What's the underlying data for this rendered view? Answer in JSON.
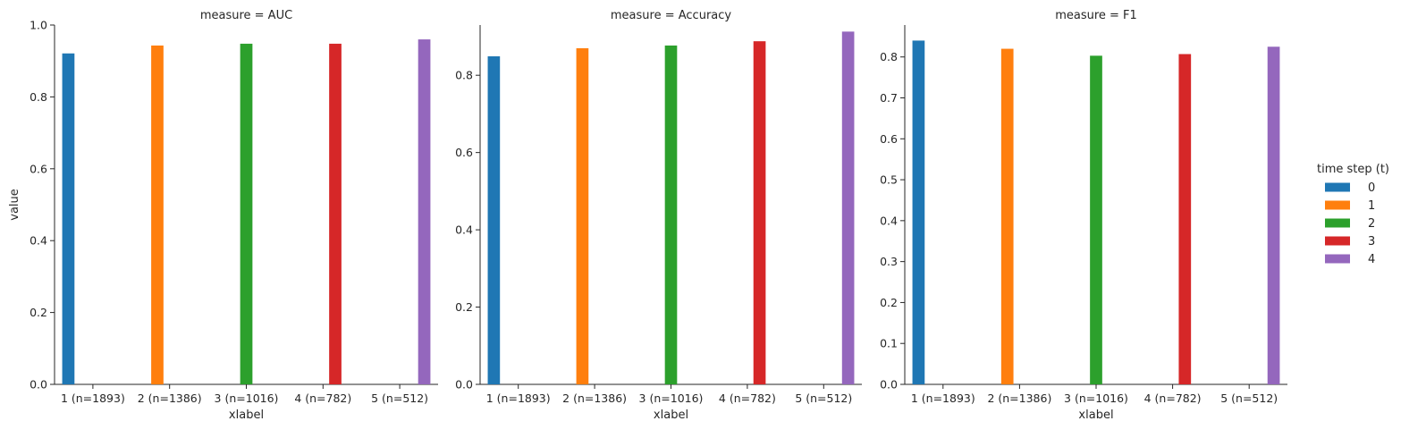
{
  "chart_data": {
    "type": "bar",
    "categories": [
      "1 (n=1893)",
      "2 (n=1386)",
      "3 (n=1016)",
      "4 (n=782)",
      "5 (n=512)"
    ],
    "xlabel": "xlabel",
    "ylabel": "value",
    "legend": {
      "title": "time step (t)",
      "placement": "right",
      "entries": [
        "0",
        "1",
        "2",
        "3",
        "4"
      ]
    },
    "colors": [
      "#1f77b4",
      "#ff7f0e",
      "#2ca02c",
      "#d62728",
      "#9467bd"
    ],
    "grid": false,
    "panels": [
      {
        "title": "measure = AUC",
        "ylim": [
          0,
          1.0
        ],
        "yticks": [
          "0.0",
          "0.2",
          "0.4",
          "0.6",
          "0.8",
          "1.0"
        ],
        "ytick_values": [
          0,
          0.2,
          0.4,
          0.6,
          0.8,
          1.0
        ],
        "series": [
          {
            "name": "0",
            "values": [
              0.921,
              null,
              null,
              null,
              null
            ]
          },
          {
            "name": "1",
            "values": [
              null,
              0.943,
              null,
              null,
              null
            ]
          },
          {
            "name": "2",
            "values": [
              null,
              null,
              0.948,
              null,
              null
            ]
          },
          {
            "name": "3",
            "values": [
              null,
              null,
              null,
              0.948,
              null
            ]
          },
          {
            "name": "4",
            "values": [
              null,
              null,
              null,
              null,
              0.96
            ]
          }
        ]
      },
      {
        "title": "measure = Accuracy",
        "ylim": [
          0,
          0.93
        ],
        "yticks": [
          "0.0",
          "0.2",
          "0.4",
          "0.6",
          "0.8"
        ],
        "ytick_values": [
          0,
          0.2,
          0.4,
          0.6,
          0.8
        ],
        "series": [
          {
            "name": "0",
            "values": [
              0.849,
              null,
              null,
              null,
              null
            ]
          },
          {
            "name": "1",
            "values": [
              null,
              0.87,
              null,
              null,
              null
            ]
          },
          {
            "name": "2",
            "values": [
              null,
              null,
              0.877,
              null,
              null
            ]
          },
          {
            "name": "3",
            "values": [
              null,
              null,
              null,
              0.888,
              null
            ]
          },
          {
            "name": "4",
            "values": [
              null,
              null,
              null,
              null,
              0.913
            ]
          }
        ]
      },
      {
        "title": "measure = F1",
        "ylim": [
          0,
          0.878
        ],
        "yticks": [
          "0.0",
          "0.1",
          "0.2",
          "0.3",
          "0.4",
          "0.5",
          "0.6",
          "0.7",
          "0.8"
        ],
        "ytick_values": [
          0,
          0.1,
          0.2,
          0.3,
          0.4,
          0.5,
          0.6,
          0.7,
          0.8
        ],
        "series": [
          {
            "name": "0",
            "values": [
              0.84,
              null,
              null,
              null,
              null
            ]
          },
          {
            "name": "1",
            "values": [
              null,
              0.82,
              null,
              null,
              null
            ]
          },
          {
            "name": "2",
            "values": [
              null,
              null,
              0.803,
              null,
              null
            ]
          },
          {
            "name": "3",
            "values": [
              null,
              null,
              null,
              0.807,
              null
            ]
          },
          {
            "name": "4",
            "values": [
              null,
              null,
              null,
              null,
              0.825
            ]
          }
        ]
      }
    ]
  }
}
